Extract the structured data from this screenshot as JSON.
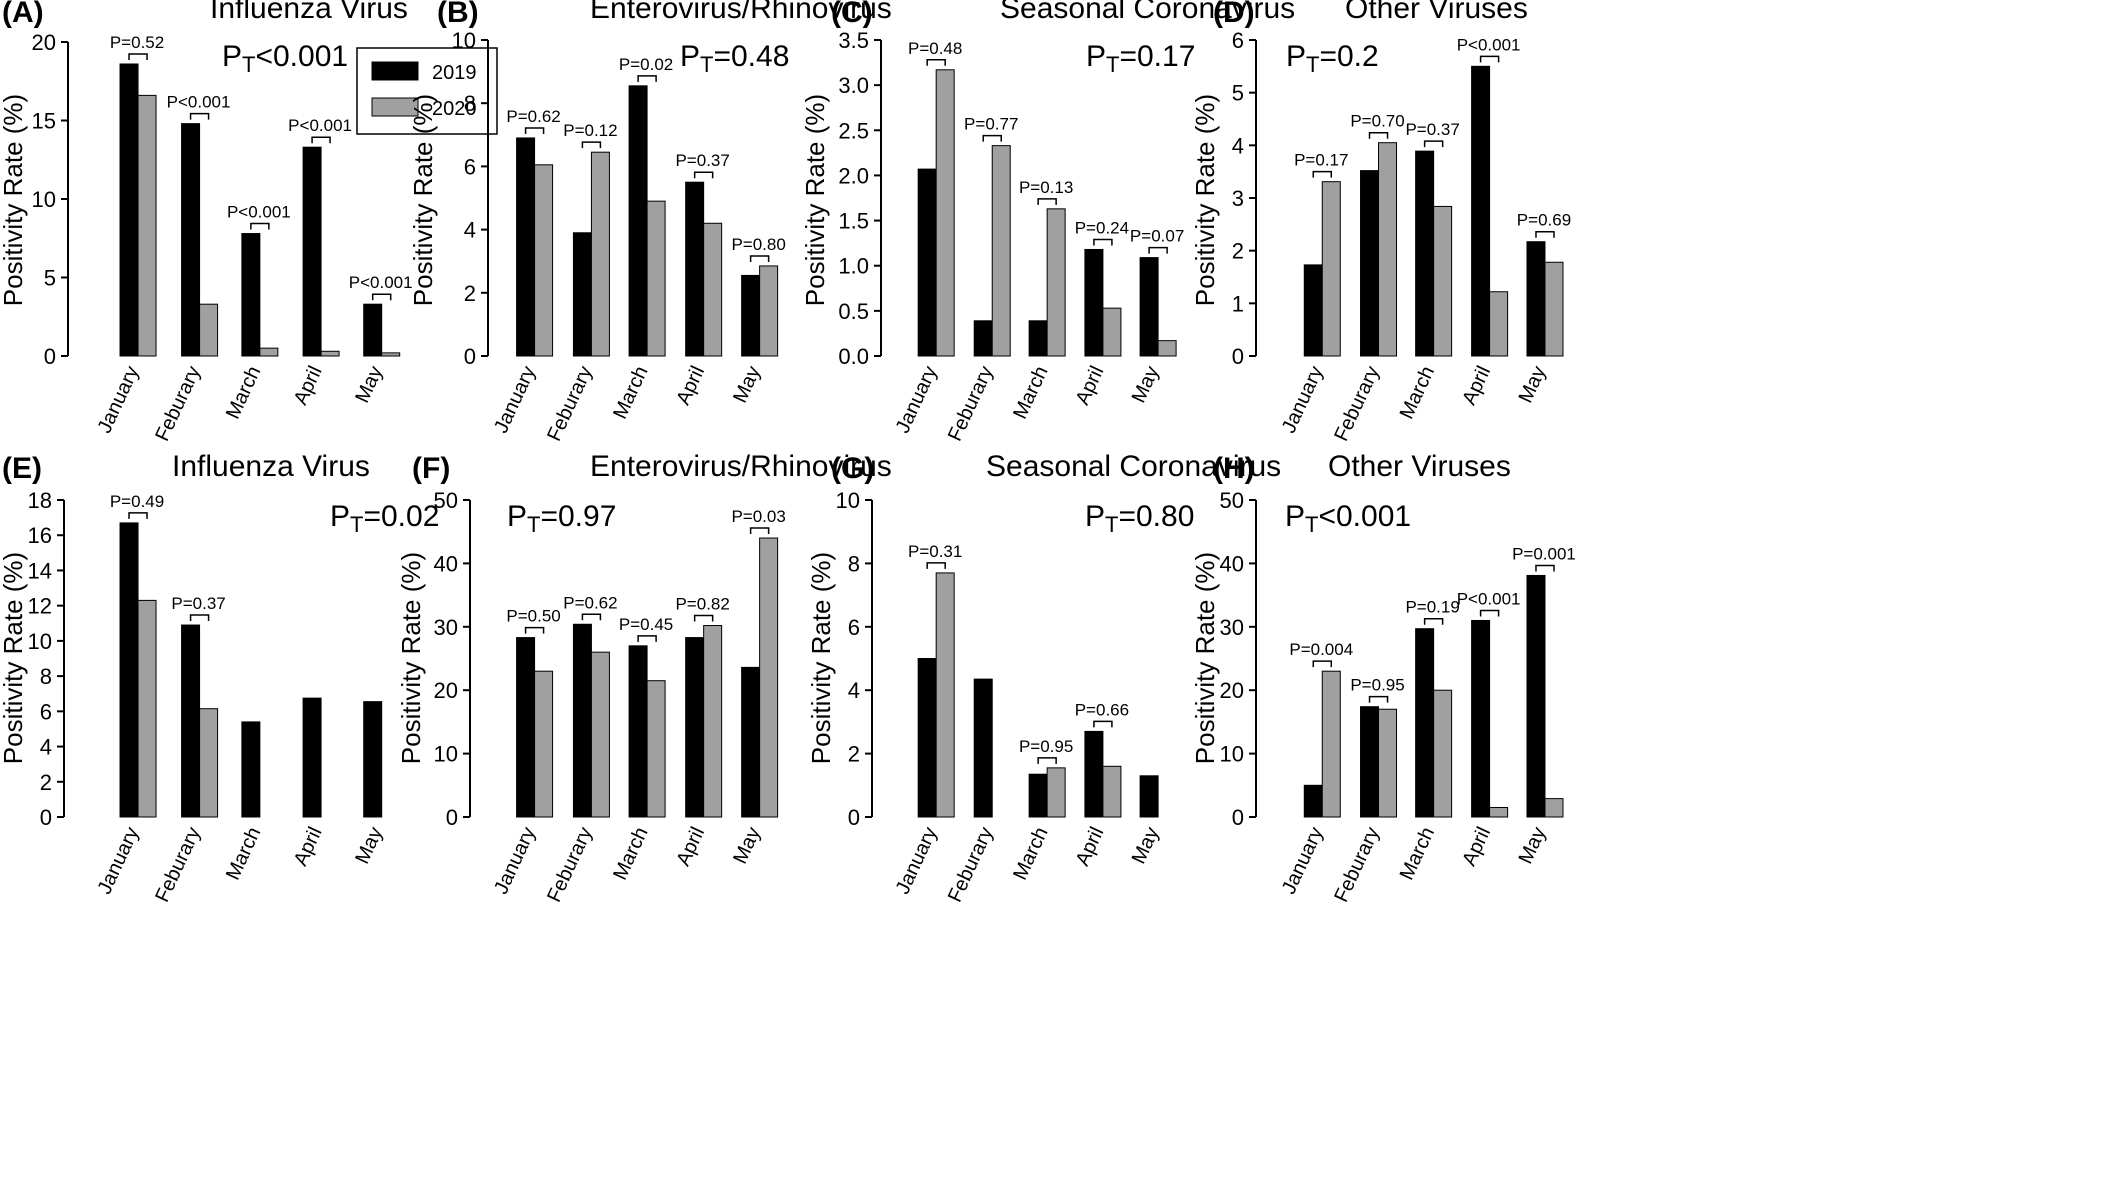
{
  "colors": {
    "series_2019": "#000000",
    "series_2020": "#a0a0a0",
    "axis": "#000000"
  },
  "legend": {
    "entries": [
      "2019",
      "2020"
    ]
  },
  "chart_data": [
    {
      "type": "bar",
      "letter": "(A)",
      "title": "Influenza Virus",
      "ylabel": "Positivity Rate (%)",
      "ylim": [
        0,
        20
      ],
      "yticks": [
        "0",
        "5",
        "10",
        "15",
        "20"
      ],
      "categories": [
        "January",
        "Feburary",
        "March",
        "April",
        "May"
      ],
      "series": [
        {
          "name": "2019",
          "values": [
            18.6,
            14.8,
            7.8,
            13.3,
            3.3
          ]
        },
        {
          "name": "2020",
          "values": [
            16.6,
            3.3,
            0.5,
            0.3,
            0.2
          ]
        }
      ],
      "pvalues": [
        "P=0.52",
        "P<0.001",
        "P<0.001",
        "P<0.001",
        "P<0.001"
      ],
      "ptotal": {
        "main": "P",
        "sub": "T",
        "rest": "<0.001"
      },
      "has_legend": true
    },
    {
      "type": "bar",
      "letter": "(B)",
      "title": "Enterovirus/Rhinovirus",
      "ylabel": "Positivity Rate (%)",
      "ylim": [
        0,
        10
      ],
      "yticks": [
        "0",
        "2",
        "4",
        "6",
        "8",
        "10"
      ],
      "categories": [
        "January",
        "Feburary",
        "March",
        "April",
        "May"
      ],
      "series": [
        {
          "name": "2019",
          "values": [
            6.9,
            3.9,
            8.55,
            5.5,
            2.55
          ]
        },
        {
          "name": "2020",
          "values": [
            6.05,
            6.45,
            4.9,
            4.2,
            2.85
          ]
        }
      ],
      "pvalues": [
        "P=0.62",
        "P=0.12",
        "P=0.02",
        "P=0.37",
        "P=0.80"
      ],
      "ptotal": {
        "main": "P",
        "sub": "T",
        "rest": "=0.48"
      }
    },
    {
      "type": "bar",
      "letter": "(C)",
      "title": "Seasonal Coronavirus",
      "ylabel": "Positivity Rate (%)",
      "ylim": [
        0,
        3.5
      ],
      "yticks": [
        "0.0",
        "0.5",
        "1.0",
        "1.5",
        "2.0",
        "2.5",
        "3.0",
        "3.5"
      ],
      "categories": [
        "January",
        "Feburary",
        "March",
        "April",
        "May"
      ],
      "series": [
        {
          "name": "2019",
          "values": [
            2.07,
            0.39,
            0.39,
            1.18,
            1.09
          ]
        },
        {
          "name": "2020",
          "values": [
            3.17,
            2.33,
            1.63,
            0.53,
            0.17
          ]
        }
      ],
      "pvalues": [
        "P=0.48",
        "P=0.77",
        "P=0.13",
        "P=0.24",
        "P=0.07"
      ],
      "ptotal": {
        "main": "P",
        "sub": "T",
        "rest": "=0.17"
      }
    },
    {
      "type": "bar",
      "letter": "(D)",
      "title": "Other Viruses",
      "ylabel": "Positivity Rate (%)",
      "ylim": [
        0,
        6
      ],
      "yticks": [
        "0",
        "1",
        "2",
        "3",
        "4",
        "5",
        "6"
      ],
      "categories": [
        "January",
        "Feburary",
        "March",
        "April",
        "May"
      ],
      "series": [
        {
          "name": "2019",
          "values": [
            1.73,
            3.52,
            3.89,
            5.5,
            2.17
          ]
        },
        {
          "name": "2020",
          "values": [
            3.31,
            4.05,
            2.84,
            1.22,
            1.78
          ]
        }
      ],
      "pvalues": [
        "P=0.17",
        "P=0.70",
        "P=0.37",
        "P<0.001",
        "P=0.69"
      ],
      "ptotal": {
        "main": "P",
        "sub": "T",
        "rest": "=0.2"
      }
    },
    {
      "type": "bar",
      "letter": "(E)",
      "title": "Influenza Virus",
      "ylabel": "Positivity Rate (%)",
      "ylim": [
        0,
        18
      ],
      "yticks": [
        "0",
        "2",
        "4",
        "6",
        "8",
        "10",
        "12",
        "14",
        "16",
        "18"
      ],
      "categories": [
        "January",
        "Feburary",
        "March",
        "April",
        "May"
      ],
      "series": [
        {
          "name": "2019",
          "values": [
            16.7,
            10.9,
            5.4,
            6.75,
            6.55
          ]
        },
        {
          "name": "2020",
          "values": [
            12.3,
            6.15,
            0,
            0,
            0
          ]
        }
      ],
      "pvalues": [
        "P=0.49",
        "P=0.37",
        "",
        "",
        ""
      ],
      "ptotal": {
        "main": "P",
        "sub": "T",
        "rest": "=0.02"
      }
    },
    {
      "type": "bar",
      "letter": "(F)",
      "title": "Enterovirus/Rhinovirus",
      "ylabel": "Positivity Rate (%)",
      "ylim": [
        0,
        50
      ],
      "yticks": [
        "0",
        "10",
        "20",
        "30",
        "40",
        "50"
      ],
      "categories": [
        "January",
        "Feburary",
        "March",
        "April",
        "May"
      ],
      "series": [
        {
          "name": "2019",
          "values": [
            28.3,
            30.4,
            27.0,
            28.3,
            23.6
          ]
        },
        {
          "name": "2020",
          "values": [
            23.0,
            26.0,
            21.5,
            30.2,
            44.0
          ]
        }
      ],
      "pvalues": [
        "P=0.50",
        "P=0.62",
        "P=0.45",
        "P=0.82",
        "P=0.03"
      ],
      "ptotal": {
        "main": "P",
        "sub": "T",
        "rest": "=0.97"
      }
    },
    {
      "type": "bar",
      "letter": "(G)",
      "title": "Seasonal Coronavirus",
      "ylabel": "Positivity Rate (%)",
      "ylim": [
        0,
        10
      ],
      "yticks": [
        "0",
        "2",
        "4",
        "6",
        "8",
        "10"
      ],
      "categories": [
        "January",
        "Feburary",
        "March",
        "April",
        "May"
      ],
      "series": [
        {
          "name": "2019",
          "values": [
            5.0,
            4.35,
            1.35,
            2.7,
            1.3
          ]
        },
        {
          "name": "2020",
          "values": [
            7.7,
            0,
            1.55,
            1.6,
            0
          ]
        }
      ],
      "pvalues": [
        "P=0.31",
        "",
        "P=0.95",
        "P=0.66",
        ""
      ],
      "ptotal": {
        "main": "P",
        "sub": "T",
        "rest": "=0.80"
      }
    },
    {
      "type": "bar",
      "letter": "(H)",
      "title": "Other Viruses",
      "ylabel": "Positivity Rate (%)",
      "ylim": [
        0,
        50
      ],
      "yticks": [
        "0",
        "10",
        "20",
        "30",
        "40",
        "50"
      ],
      "categories": [
        "January",
        "Feburary",
        "March",
        "April",
        "May"
      ],
      "series": [
        {
          "name": "2019",
          "values": [
            5.0,
            17.4,
            29.7,
            31.0,
            38.1
          ]
        },
        {
          "name": "2020",
          "values": [
            23.0,
            17.0,
            20.0,
            1.5,
            2.9
          ]
        }
      ],
      "pvalues": [
        "P=0.004",
        "P=0.95",
        "P=0.19",
        "P<0.001",
        "P=0.001"
      ],
      "ptotal": {
        "main": "P",
        "sub": "T",
        "rest": "<0.001"
      }
    }
  ]
}
